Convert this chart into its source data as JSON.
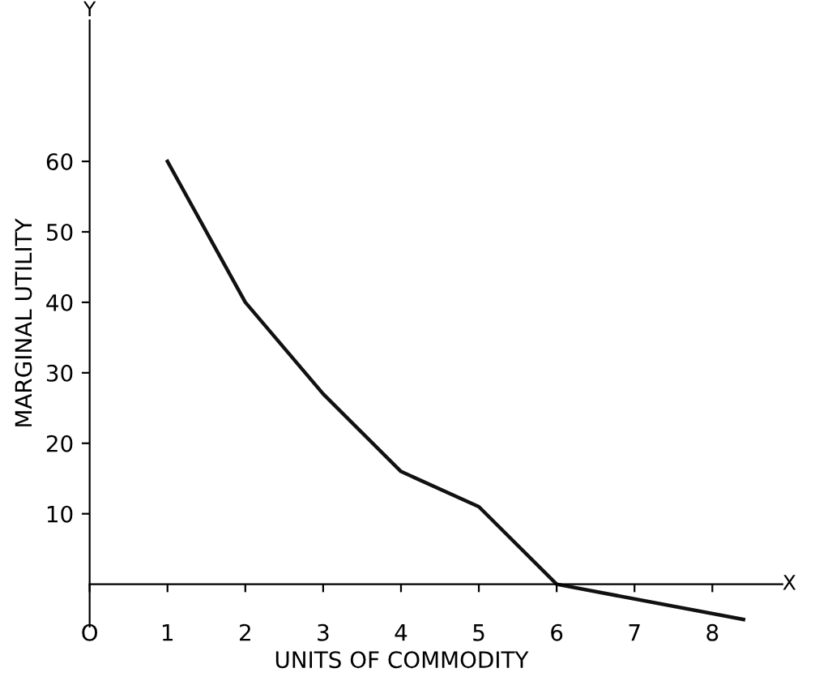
{
  "chart_data": {
    "type": "line",
    "xlabel": "UNITS OF COMMODITY",
    "ylabel": "MARGINAL UTILITY",
    "x": [
      1,
      2,
      3,
      4,
      5,
      6,
      8.4
    ],
    "series": [
      {
        "color": "#111111",
        "values": [
          60,
          40,
          27,
          16,
          11,
          0,
          -5
        ]
      }
    ],
    "xlim": [
      0,
      8.9
    ],
    "ylim": [
      -6,
      80
    ],
    "xticks": [
      {
        "value": 0,
        "label": "O"
      },
      1,
      2,
      3,
      4,
      5,
      6,
      7,
      8
    ],
    "yticks": [
      10,
      20,
      30,
      40,
      50,
      60
    ],
    "annotations": [
      "X",
      "Y"
    ],
    "grid": false,
    "legend": false,
    "marker": "none",
    "line_style": "solid"
  }
}
